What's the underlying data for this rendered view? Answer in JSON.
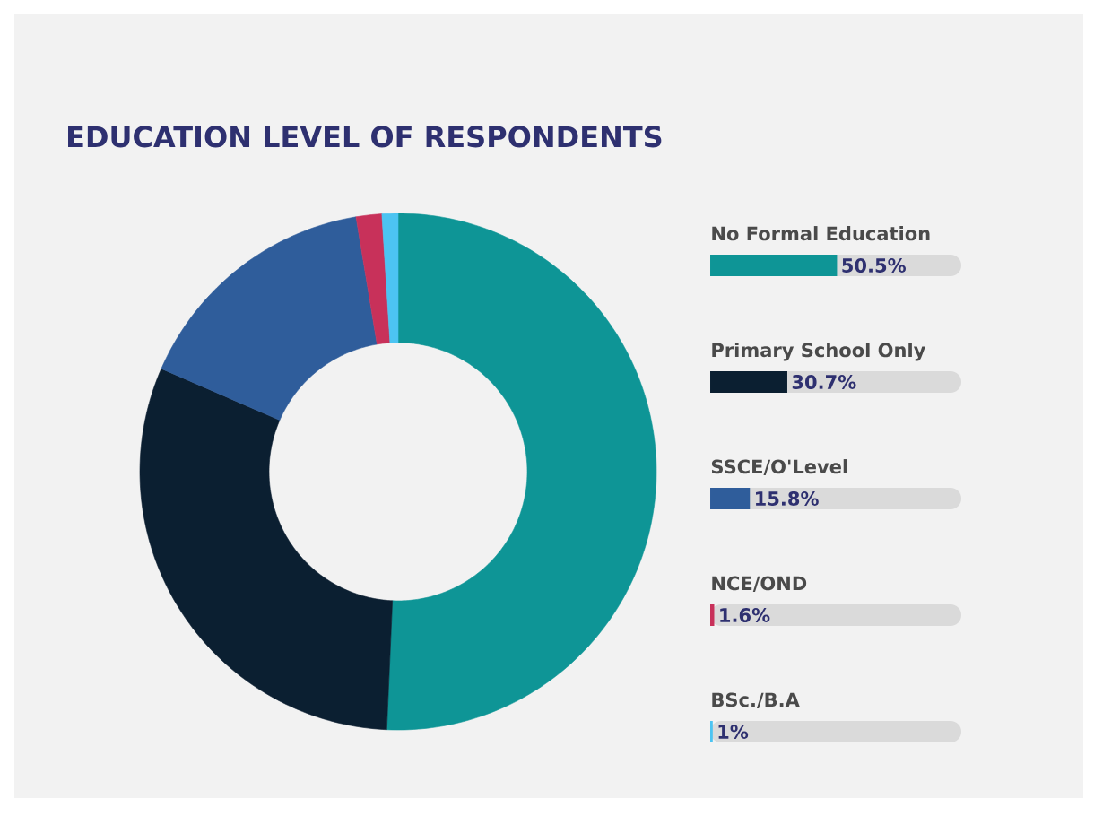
{
  "chart_data": [
    {
      "type": "donut",
      "title": "EDUCATION LEVEL OF RESPONDENTS",
      "categories": [
        null,
        null,
        null,
        null,
        null
      ],
      "values": [
        50.5,
        30.7,
        15.8,
        1.6,
        1
      ],
      "colors": [
        "#0e9596",
        "#0b1f31",
        "#2f5d9b",
        "#c8315a",
        "#4cc4f2"
      ]
    },
    {
      "type": "bar",
      "orientation": "horizontal",
      "categories": [
        "No Formal Education",
        "Primary School Only",
        "SSCE/O'Level",
        "NCE/OND",
        "BSc./B.A"
      ],
      "values": [
        50.5,
        30.7,
        15.8,
        1.6,
        1
      ],
      "colors": [
        "#0e9596",
        "#0b1f31",
        "#2f5d9b",
        "#c8315a",
        "#4cc4f2"
      ],
      "value_labels": [
        "50.5%",
        "30.7%",
        "15.8%",
        "1.6%",
        "1%"
      ],
      "xlim": [
        0,
        100
      ]
    }
  ]
}
